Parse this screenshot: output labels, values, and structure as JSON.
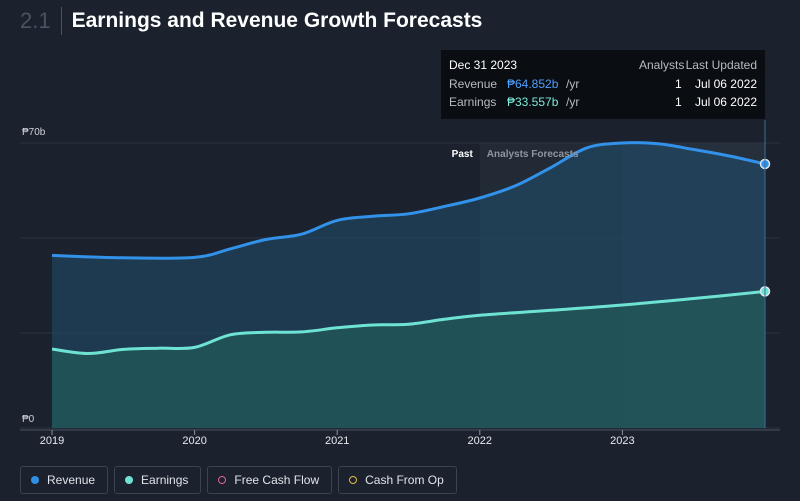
{
  "header": {
    "section": "2.1",
    "title": "Earnings and Revenue Growth Forecasts"
  },
  "tooltip": {
    "date": "Dec 31 2023",
    "col_analysts": "Analysts",
    "col_updated": "Last Updated",
    "rows": [
      {
        "label": "Revenue",
        "value": "₱64.852b",
        "unit": "/yr",
        "analysts": "1",
        "updated": "Jul 06 2022",
        "color": "#4ea0ff"
      },
      {
        "label": "Earnings",
        "value": "₱33.557b",
        "unit": "/yr",
        "analysts": "1",
        "updated": "Jul 06 2022",
        "color": "#7eead8"
      }
    ]
  },
  "chart_labels": {
    "past": "Past",
    "forecast": "Analysts Forecasts"
  },
  "legend": [
    {
      "label": "Revenue",
      "color": "#2f8fe6",
      "filled": true
    },
    {
      "label": "Earnings",
      "color": "#6ee3d3",
      "filled": true
    },
    {
      "label": "Free Cash Flow",
      "color": "#e0619a",
      "filled": false
    },
    {
      "label": "Cash From Op",
      "color": "#e6b84a",
      "filled": false
    }
  ],
  "chart_data": {
    "type": "area",
    "x_tick_labels": [
      "2019",
      "2020",
      "2021",
      "2022",
      "2023"
    ],
    "y_tick_labels": [
      "₱70b",
      "₱0"
    ],
    "ylim": [
      0,
      70
    ],
    "xlim": [
      2019,
      2024
    ],
    "forecast_start": 2022,
    "highlight_start": 2023,
    "series": [
      {
        "name": "Revenue",
        "color": "#3291e8",
        "points": [
          [
            2019,
            42.4
          ],
          [
            2019.5,
            41.8
          ],
          [
            2020,
            41.9
          ],
          [
            2020.25,
            44.0
          ],
          [
            2020.5,
            46.3
          ],
          [
            2020.75,
            47.6
          ],
          [
            2021,
            51.0
          ],
          [
            2021.25,
            52.0
          ],
          [
            2021.5,
            52.6
          ],
          [
            2021.75,
            54.4
          ],
          [
            2022,
            56.5
          ],
          [
            2022.25,
            59.5
          ],
          [
            2022.5,
            64.0
          ],
          [
            2022.75,
            68.8
          ],
          [
            2023,
            70.0
          ],
          [
            2023.25,
            69.8
          ],
          [
            2023.5,
            68.4
          ],
          [
            2023.75,
            66.8
          ],
          [
            2024,
            64.852
          ]
        ]
      },
      {
        "name": "Earnings",
        "color": "#6ee3d3",
        "points": [
          [
            2019,
            19.4
          ],
          [
            2019.25,
            18.3
          ],
          [
            2019.5,
            19.3
          ],
          [
            2019.75,
            19.6
          ],
          [
            2020,
            19.8
          ],
          [
            2020.25,
            22.9
          ],
          [
            2020.5,
            23.5
          ],
          [
            2020.75,
            23.6
          ],
          [
            2021,
            24.6
          ],
          [
            2021.25,
            25.3
          ],
          [
            2021.5,
            25.5
          ],
          [
            2021.75,
            26.7
          ],
          [
            2022,
            27.7
          ],
          [
            2022.5,
            28.9
          ],
          [
            2023,
            30.2
          ],
          [
            2023.5,
            31.8
          ],
          [
            2024,
            33.557
          ]
        ]
      }
    ]
  }
}
